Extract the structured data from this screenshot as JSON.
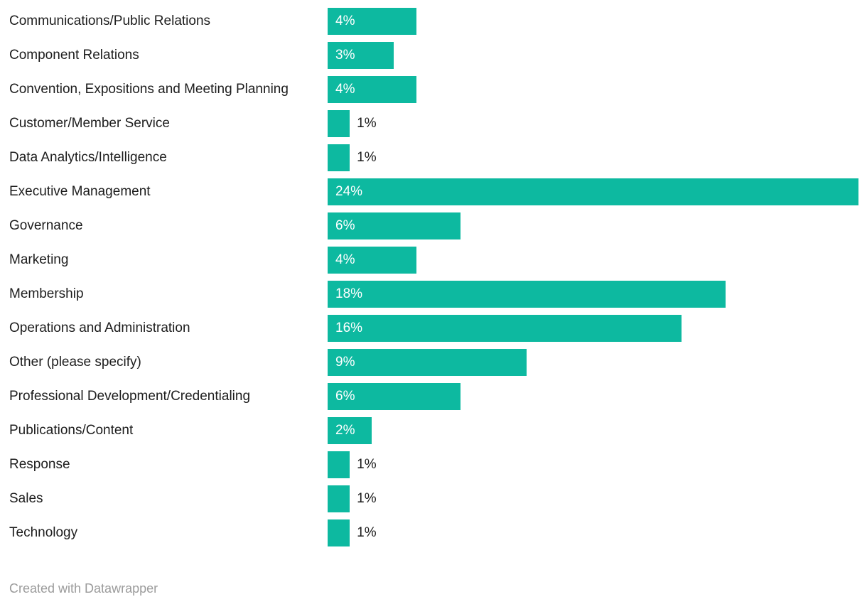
{
  "chart_data": {
    "type": "bar",
    "orientation": "horizontal",
    "title": "",
    "xlabel": "",
    "ylabel": "",
    "xlim": [
      0,
      24
    ],
    "grid": false,
    "legend": "none",
    "value_suffix": "%",
    "bar_color": "#0DB9A0",
    "label_color": "#1d1d1d",
    "value_inside_color": "#ffffff",
    "categories": [
      "Communications/Public Relations",
      "Component Relations",
      "Convention, Expositions and Meeting Planning",
      "Customer/Member Service",
      "Data Analytics/Intelligence",
      "Executive Management",
      "Governance",
      "Marketing",
      "Membership",
      "Operations and Administration",
      "Other (please specify)",
      "Professional Development/Credentialing",
      "Publications/Content",
      "Response",
      "Sales",
      "Technology"
    ],
    "values": [
      4,
      3,
      4,
      1,
      1,
      24,
      6,
      4,
      18,
      16,
      9,
      6,
      2,
      1,
      1,
      1
    ],
    "display_values": [
      "4%",
      "3%",
      "4%",
      "1%",
      "1%",
      "24%",
      "6%",
      "4%",
      "18%",
      "16%",
      "9%",
      "6%",
      "2%",
      "1%",
      "1%",
      "1%"
    ]
  },
  "footer": {
    "attribution": "Created with Datawrapper"
  }
}
